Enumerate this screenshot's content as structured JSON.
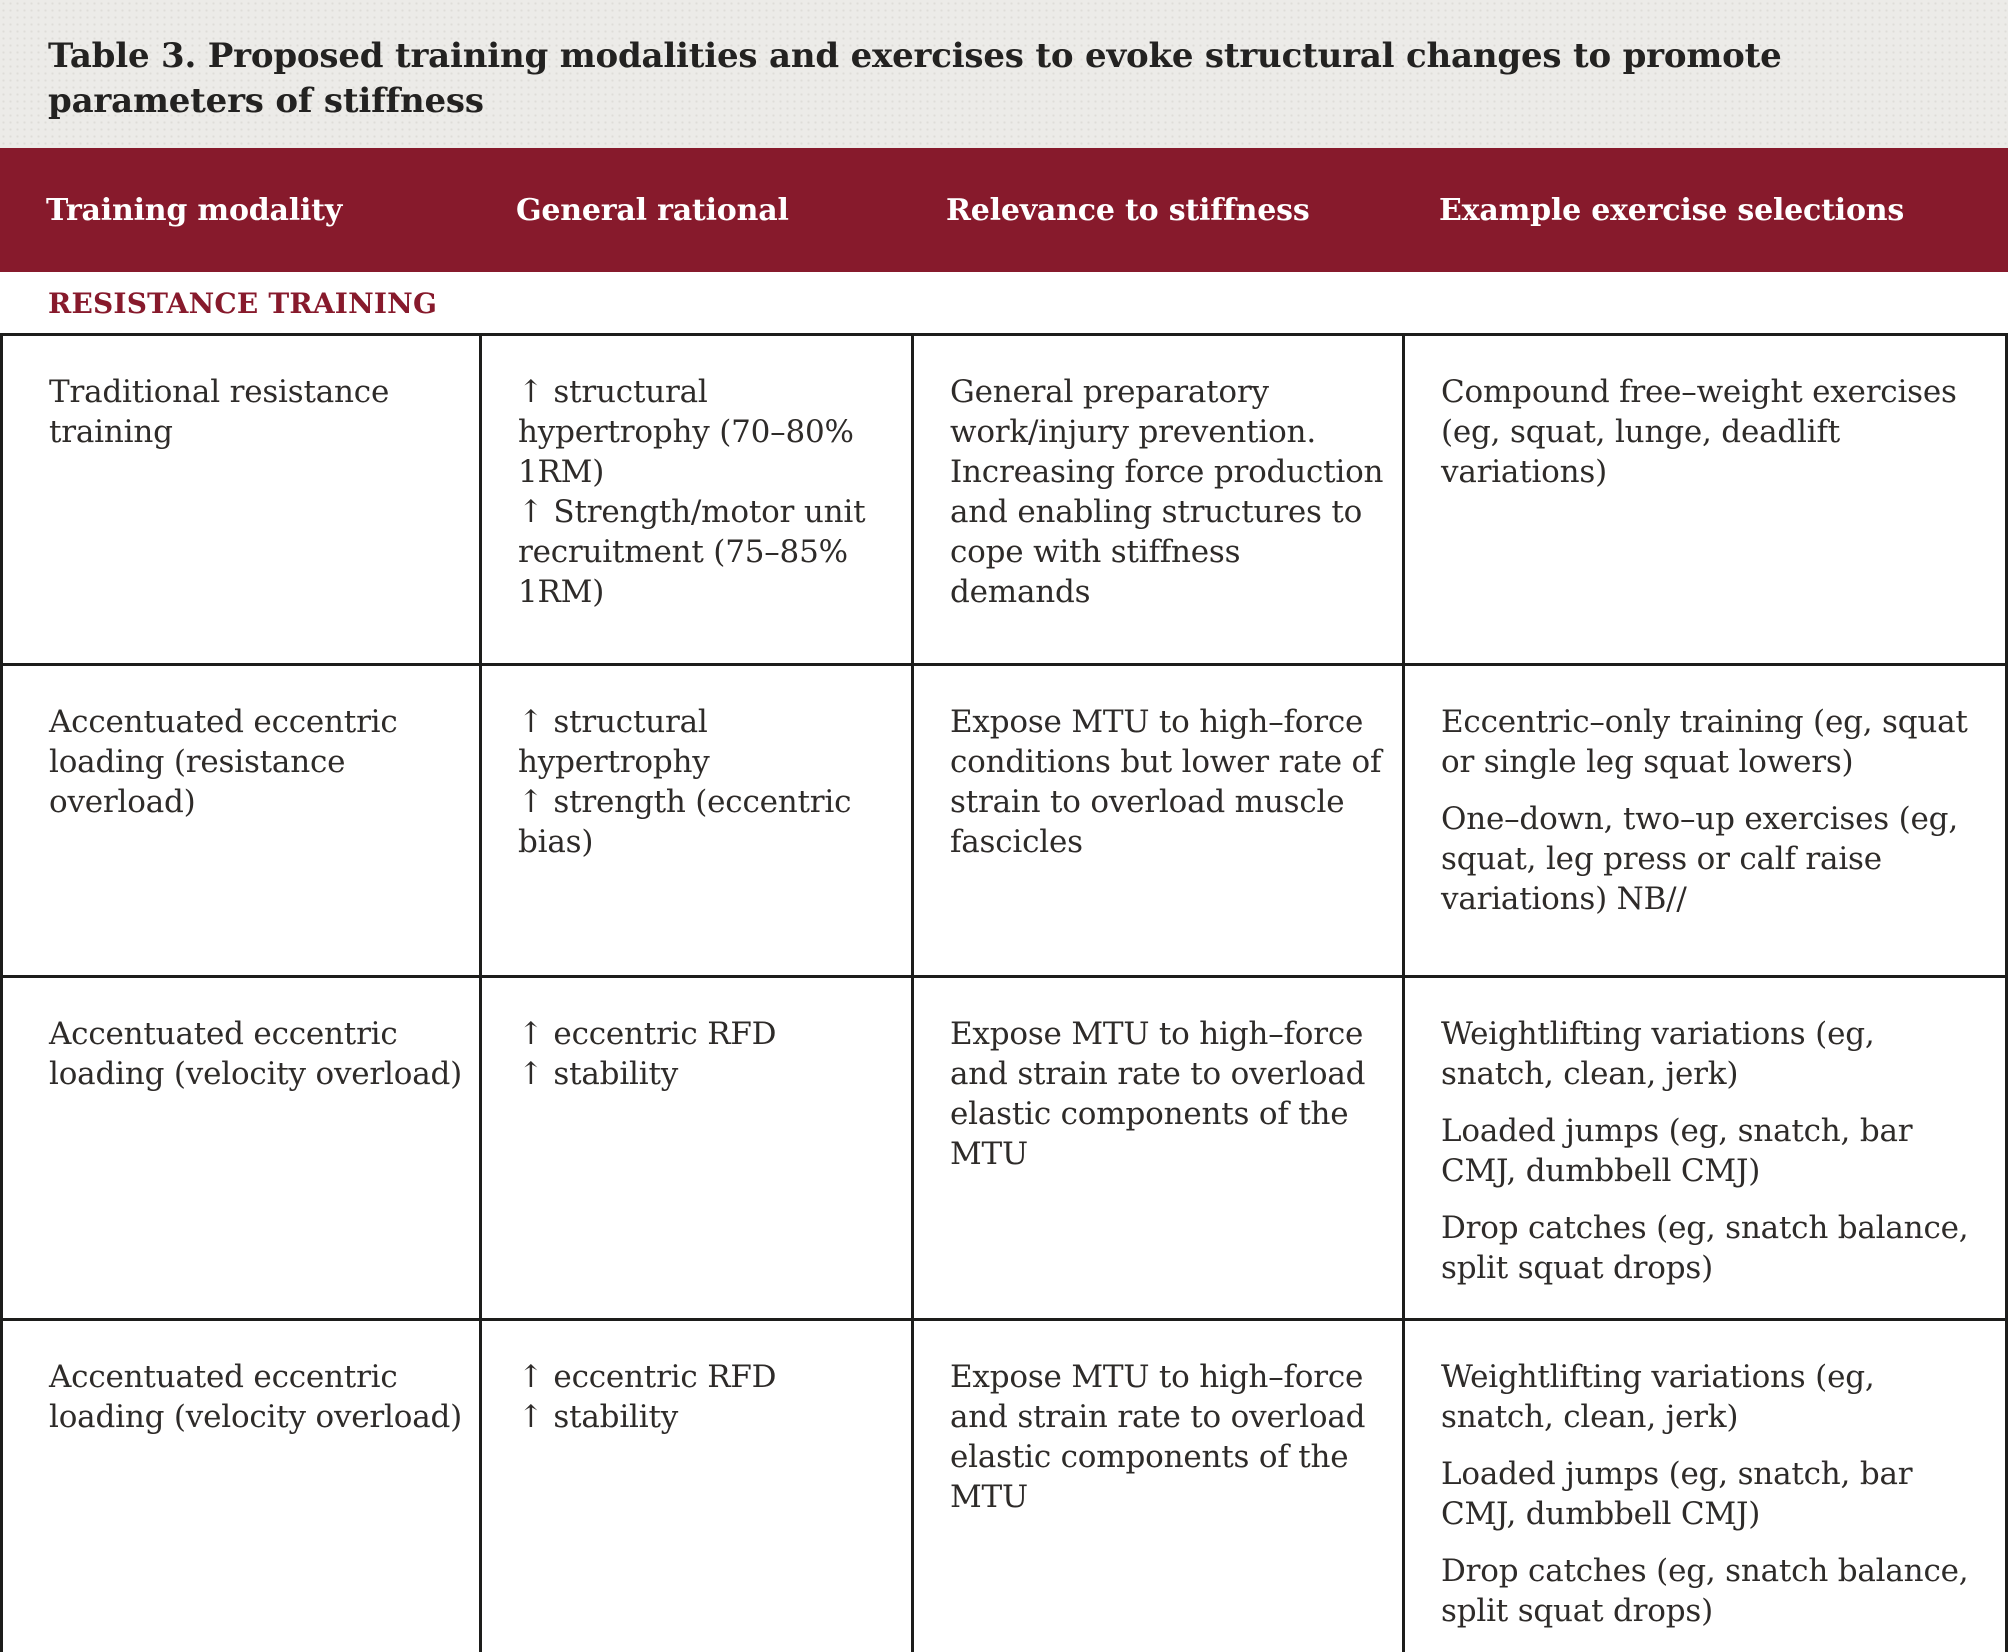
{
  "title": "Table 3. Proposed training modalities and exercises to evoke structural changes to promote parameters of stiffness",
  "section_header": "RESISTANCE TRAINING",
  "columns": [
    "Training modality",
    "General rational",
    "Relevance to stiffness",
    "Example exercise selections"
  ],
  "rows": [
    {
      "modality": "Traditional resistance training",
      "rational": [
        "↑ structural hypertrophy (70–80% 1RM)",
        "↑ Strength/motor unit recruitment (75–85% 1RM)"
      ],
      "relevance": "General preparatory work/injury prevention. Increasing force production and enabling structures to cope with stiffness demands",
      "examples": [
        "Compound free–weight exercises (eg, squat, lunge, deadlift variations)"
      ]
    },
    {
      "modality": "Accentuated eccentric loading (resistance overload)",
      "rational": [
        "↑ structural hypertrophy",
        "↑ strength (eccentric bias)"
      ],
      "relevance": "Expose MTU to high–force conditions but lower rate of strain to overload muscle fascicles",
      "examples": [
        "Eccentric–only training (eg, squat or single leg squat lowers)",
        "One–down, two–up exercises (eg, squat, leg press or calf raise variations) NB//"
      ]
    },
    {
      "modality": "Accentuated eccentric loading (velocity overload)",
      "rational": [
        "↑ eccentric RFD",
        "↑ stability"
      ],
      "relevance": "Expose MTU to high–force and strain rate to overload elastic components of the MTU",
      "examples": [
        "Weightlifting variations (eg, snatch, clean, jerk)",
        "Loaded jumps (eg, snatch, bar CMJ, dumbbell CMJ)",
        "Drop catches (eg, snatch balance, split squat drops)"
      ]
    },
    {
      "modality": "Accentuated eccentric loading (velocity overload)",
      "rational": [
        "↑ eccentric RFD",
        "↑ stability"
      ],
      "relevance": "Expose MTU to high–force and strain rate to overload elastic components of the MTU",
      "examples": [
        "Weightlifting variations (eg, snatch, clean, jerk)",
        "Loaded jumps (eg, snatch, bar CMJ, dumbbell CMJ)",
        "Drop catches (eg, snatch balance, split squat drops)"
      ]
    }
  ],
  "colors": {
    "maroon": "#871a2c",
    "border": "#1d1d1b",
    "body_text": "#2e2b29",
    "page_bg": "#ecebe8"
  }
}
